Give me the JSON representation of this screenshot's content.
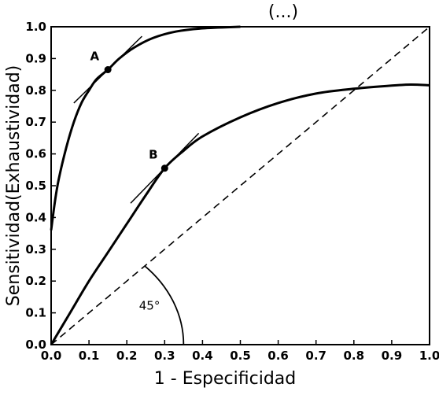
{
  "chart_data": {
    "type": "line",
    "title_fragment": "(...)",
    "xlabel": "1 - Especificidad",
    "ylabel": "Sensitividad(Exhaustividad)",
    "xlim": [
      0,
      1
    ],
    "ylim": [
      0,
      1
    ],
    "x_ticks": [
      "0.0",
      "0.1",
      "0.2",
      "0.3",
      "0.4",
      "0.5",
      "0.6",
      "0.7",
      "0.8",
      "0.9",
      "1.0"
    ],
    "y_ticks": [
      "0.0",
      "0.1",
      "0.2",
      "0.3",
      "0.4",
      "0.5",
      "0.6",
      "0.7",
      "0.8",
      "0.9",
      "1.0"
    ],
    "grid": false,
    "series": [
      {
        "points": [
          [
            0,
            0.36
          ],
          [
            0.01,
            0.45
          ],
          [
            0.02,
            0.52
          ],
          [
            0.04,
            0.62
          ],
          [
            0.06,
            0.7
          ],
          [
            0.08,
            0.76
          ],
          [
            0.1,
            0.8
          ],
          [
            0.12,
            0.835
          ],
          [
            0.15,
            0.865
          ],
          [
            0.18,
            0.9
          ],
          [
            0.22,
            0.935
          ],
          [
            0.27,
            0.965
          ],
          [
            0.33,
            0.985
          ],
          [
            0.4,
            0.995
          ],
          [
            0.5,
            1.0
          ]
        ]
      },
      {
        "points": [
          [
            0,
            0
          ],
          [
            0.05,
            0.1
          ],
          [
            0.1,
            0.2
          ],
          [
            0.15,
            0.29
          ],
          [
            0.2,
            0.38
          ],
          [
            0.25,
            0.47
          ],
          [
            0.3,
            0.555
          ],
          [
            0.35,
            0.61
          ],
          [
            0.4,
            0.655
          ],
          [
            0.5,
            0.715
          ],
          [
            0.6,
            0.76
          ],
          [
            0.7,
            0.79
          ],
          [
            0.8,
            0.805
          ],
          [
            0.9,
            0.815
          ],
          [
            0.95,
            0.818
          ],
          [
            1.0,
            0.816
          ]
        ]
      },
      {
        "style": "dashed",
        "points": [
          [
            0,
            0
          ],
          [
            1,
            1
          ]
        ]
      }
    ],
    "points": [
      {
        "label": "A",
        "x": 0.15,
        "y": 0.865,
        "label_dx": -0.035,
        "label_dy": 0.03
      },
      {
        "label": "B",
        "x": 0.3,
        "y": 0.555,
        "label_dx": -0.03,
        "label_dy": 0.03
      }
    ],
    "tangents": [
      {
        "from": [
          0.06,
          0.76
        ],
        "to": [
          0.24,
          0.97
        ]
      },
      {
        "from": [
          0.21,
          0.445
        ],
        "to": [
          0.39,
          0.665
        ]
      }
    ],
    "angle_annotation": {
      "label": "45°",
      "radius": 0.35,
      "label_x": 0.26,
      "label_y": 0.11
    }
  }
}
